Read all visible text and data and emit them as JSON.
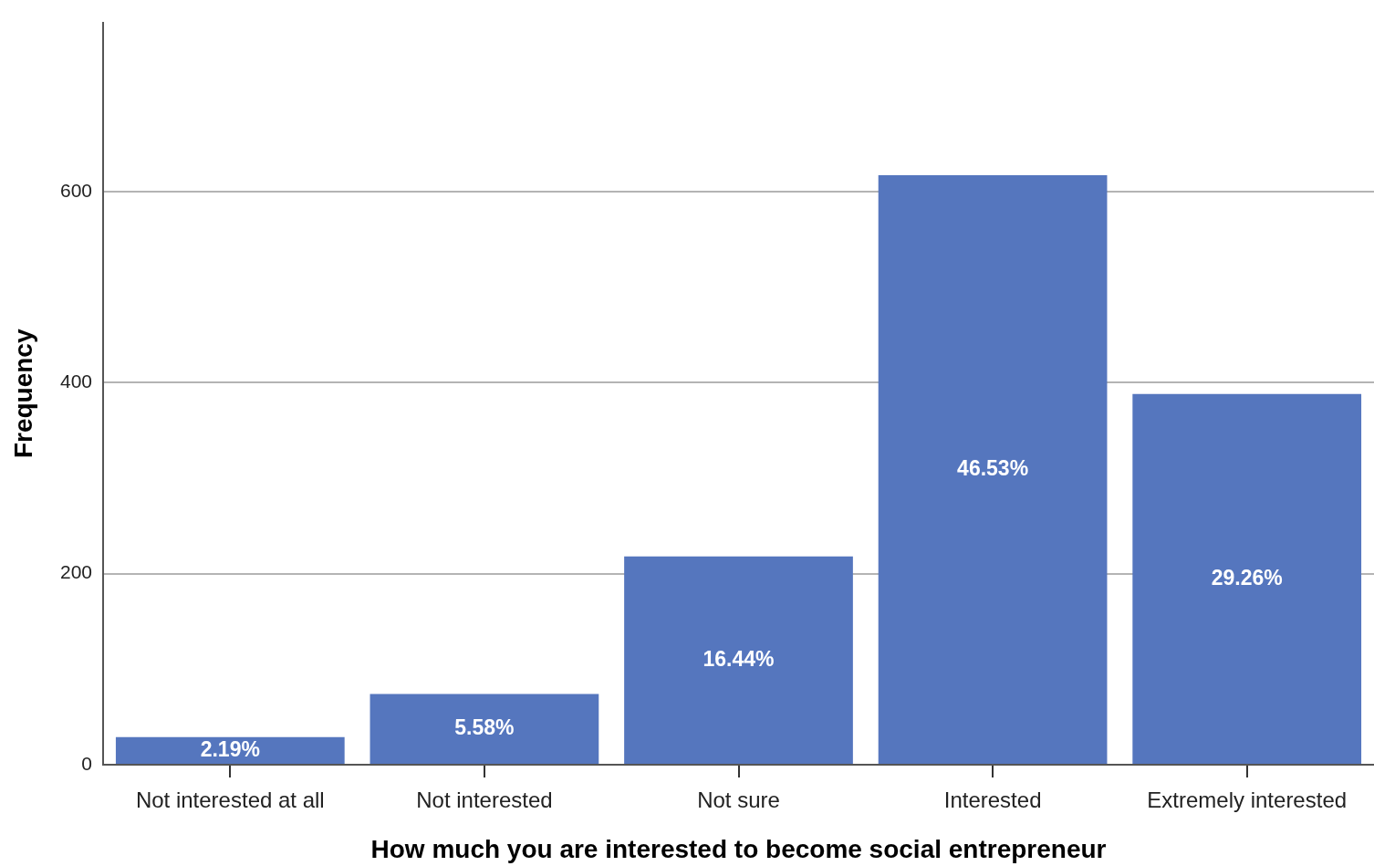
{
  "chart_data": {
    "type": "bar",
    "xlabel": "How much you are interested to become social entrepreneur",
    "ylabel": "Frequency",
    "categories": [
      "Not interested at all",
      "Not interested",
      "Not sure",
      "Interested",
      "Extremely interested"
    ],
    "values": [
      29,
      74,
      218,
      617,
      388
    ],
    "color": "#5576be",
    "annotations": [
      "2.19%",
      "5.58%",
      "16.44%",
      "46.53%",
      "29.26%"
    ],
    "ylim": [
      0,
      777
    ],
    "yticks": [
      0,
      200,
      400,
      600
    ],
    "grid": "y"
  }
}
